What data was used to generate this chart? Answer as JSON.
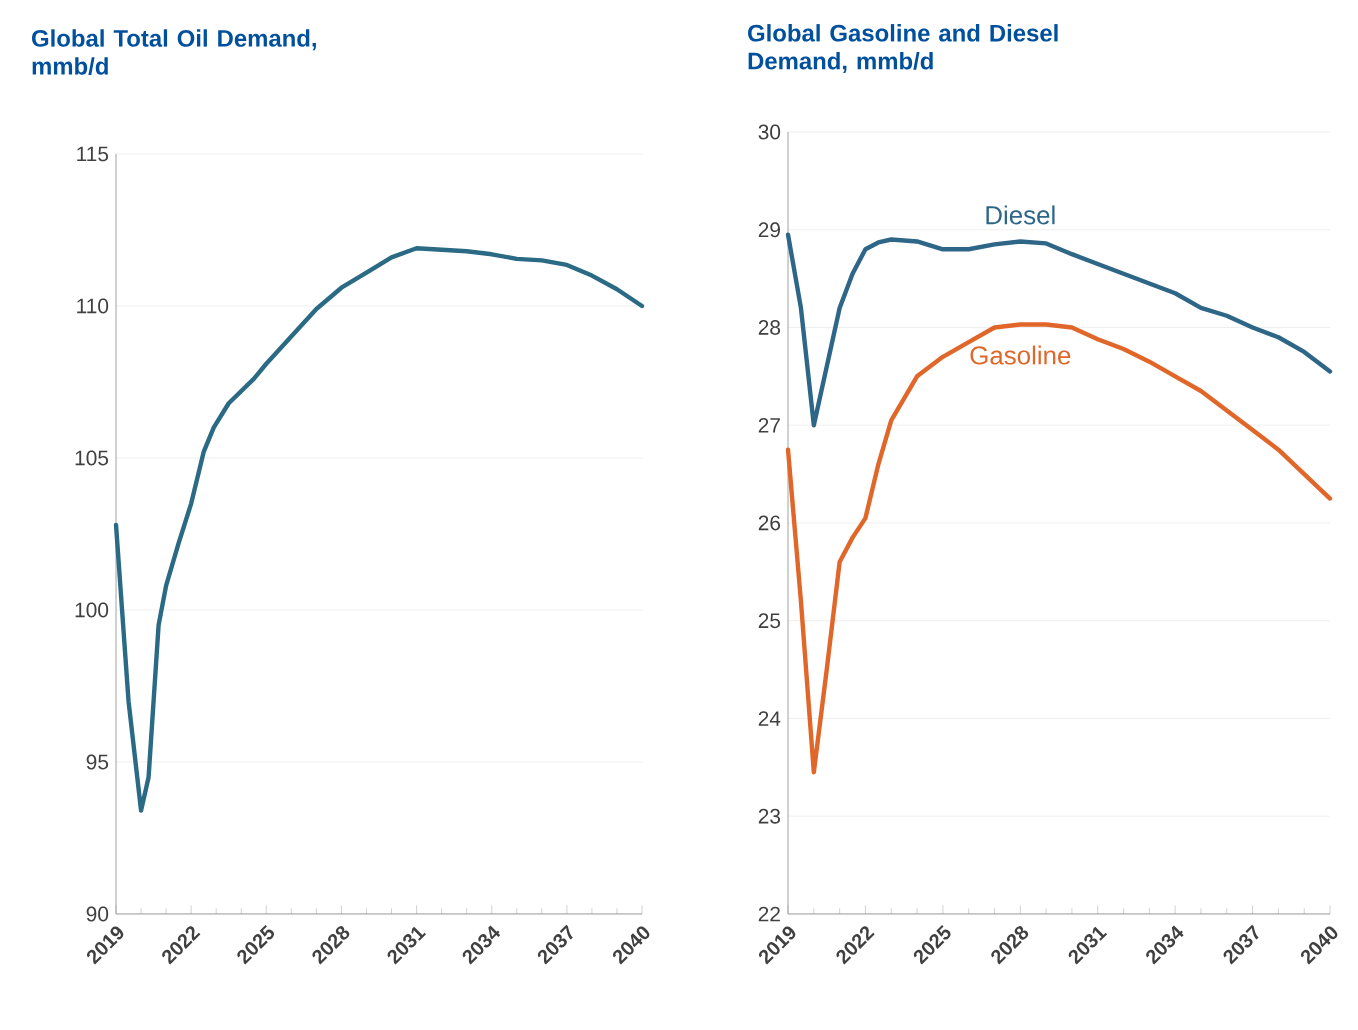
{
  "chart_data": [
    {
      "type": "line",
      "title": "Global Total Oil Demand, mmb/d",
      "x": [
        2019,
        2019.5,
        2020,
        2020.3,
        2020.7,
        2021,
        2021.5,
        2022,
        2022.5,
        2022.9,
        2023.5,
        2024.5,
        2025,
        2026,
        2027,
        2028,
        2029,
        2030,
        2031,
        2032,
        2033,
        2034,
        2035,
        2036,
        2037,
        2038,
        2039,
        2040
      ],
      "values": [
        102.8,
        97,
        93.4,
        94.5,
        99.5,
        100.8,
        102.2,
        103.5,
        105.2,
        106,
        106.8,
        107.6,
        108.1,
        109.0,
        109.9,
        110.6,
        111.1,
        111.6,
        111.9,
        111.85,
        111.8,
        111.7,
        111.55,
        111.5,
        111.35,
        111.0,
        110.55,
        110.0
      ],
      "color": "#2a6a85",
      "xlim": [
        2019,
        2040
      ],
      "xticks": [
        2019,
        2022,
        2025,
        2028,
        2031,
        2034,
        2037,
        2040
      ],
      "ylim": [
        90,
        115
      ],
      "yticks": [
        90,
        95,
        100,
        105,
        110,
        115
      ],
      "grid": "y"
    },
    {
      "type": "line",
      "title": "Global Gasoline and Diesel Demand, mmb/d",
      "x": [
        2019,
        2019.5,
        2020,
        2020.5,
        2021,
        2021.5,
        2022,
        2022.5,
        2023,
        2024,
        2025,
        2026,
        2027,
        2028,
        2029,
        2030,
        2031,
        2032,
        2033,
        2034,
        2035,
        2036,
        2037,
        2038,
        2039,
        2040
      ],
      "series": [
        {
          "name": "Diesel",
          "color": "#2e6688",
          "values": [
            28.95,
            28.2,
            27.0,
            27.6,
            28.2,
            28.55,
            28.8,
            28.87,
            28.9,
            28.88,
            28.8,
            28.8,
            28.85,
            28.88,
            28.86,
            28.75,
            28.65,
            28.55,
            28.45,
            28.35,
            28.2,
            28.12,
            28.0,
            27.9,
            27.75,
            27.55
          ]
        },
        {
          "name": "Gasoline",
          "color": "#e0662a",
          "values": [
            26.75,
            25.2,
            23.45,
            24.5,
            25.6,
            25.85,
            26.05,
            26.6,
            27.05,
            27.5,
            27.7,
            27.85,
            28.0,
            28.03,
            28.03,
            28.0,
            27.88,
            27.78,
            27.65,
            27.5,
            27.35,
            27.15,
            26.95,
            26.75,
            26.5,
            26.25
          ]
        }
      ],
      "xlim": [
        2019,
        2040
      ],
      "xticks": [
        2019,
        2022,
        2025,
        2028,
        2031,
        2034,
        2037,
        2040
      ],
      "ylim": [
        22,
        30
      ],
      "yticks": [
        22,
        23,
        24,
        25,
        26,
        27,
        28,
        29,
        30
      ],
      "grid": "y"
    }
  ]
}
